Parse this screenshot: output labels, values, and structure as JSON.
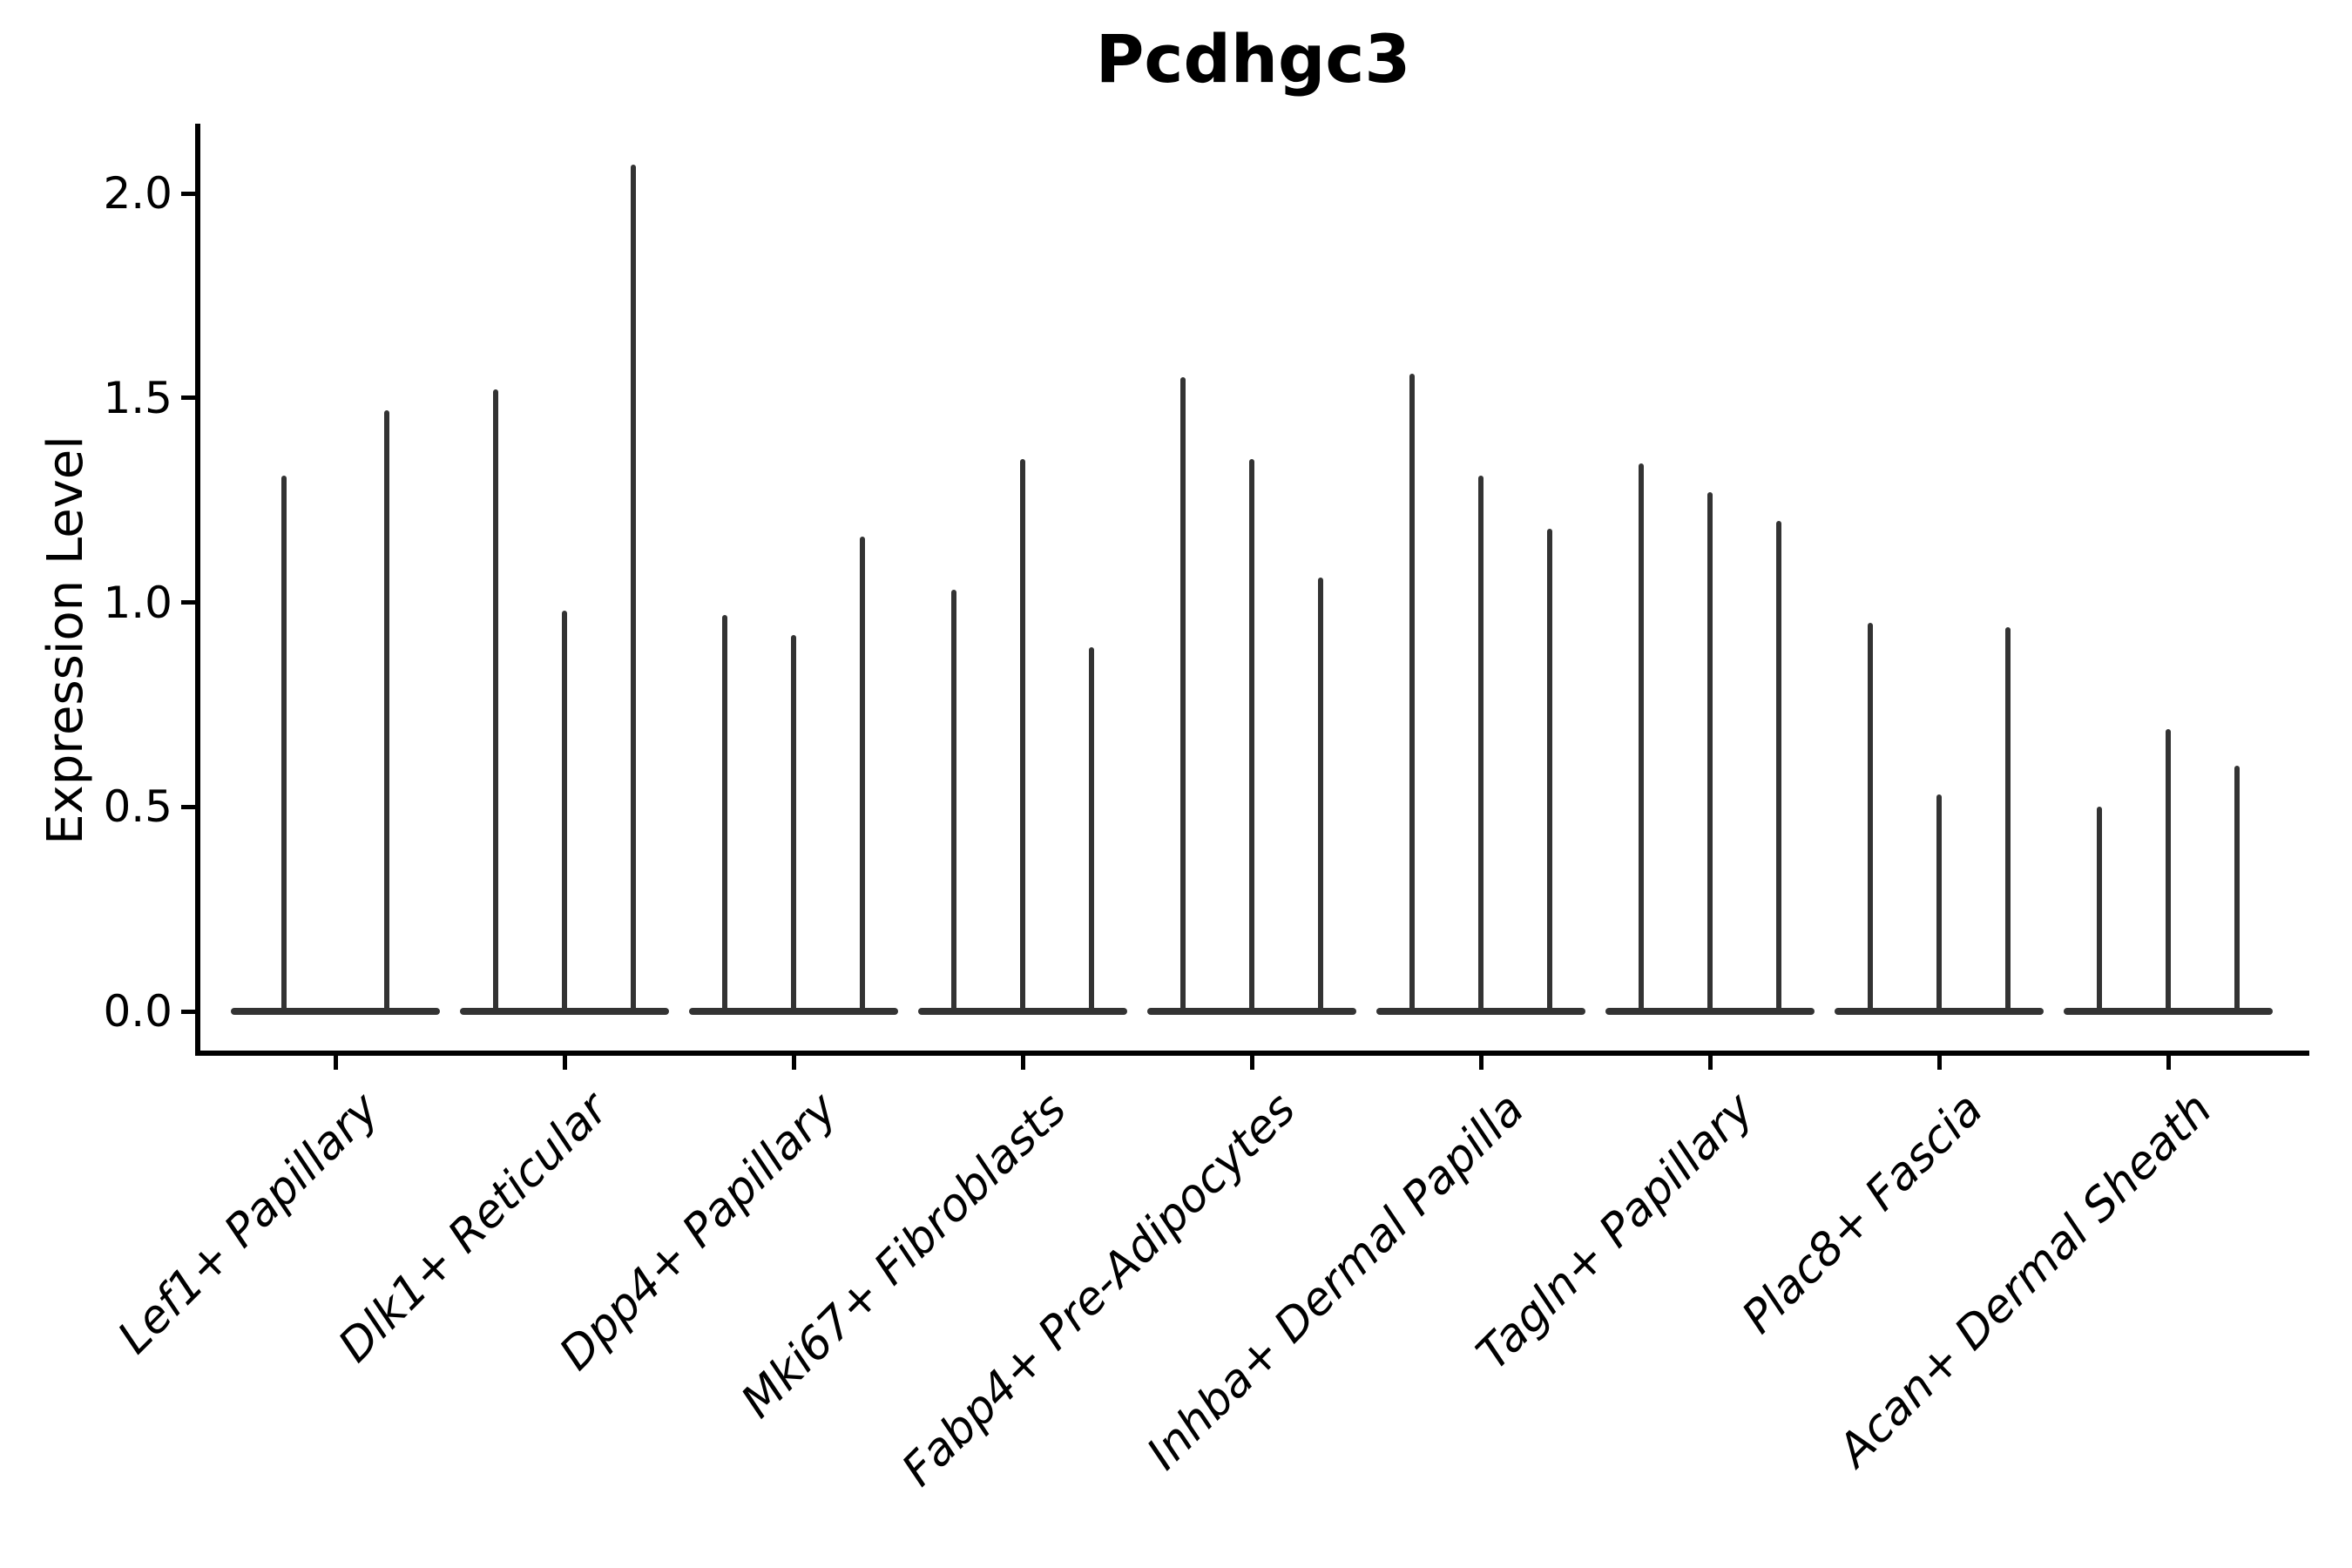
{
  "chart_data": {
    "type": "violin",
    "title": "Pcdhgc3",
    "ylabel": "Expression Level",
    "xlabel": "",
    "ylim": [
      0,
      2.17
    ],
    "grid": false,
    "legend_position": "none",
    "ytick_labels": [
      "0.0",
      "0.5",
      "1.0",
      "1.5",
      "2.0"
    ],
    "ytick_values": [
      0.0,
      0.5,
      1.0,
      1.5,
      2.0
    ],
    "categories": [
      "Lef1+ Papillary",
      "Dlk1+ Reticular",
      "Dpp4+ Papillary",
      "Mki67+ Fibroblasts",
      "Fabp4+ Pre-Adipocytes",
      "Inhba+ Dermal Papilla",
      "Tagln+ Papillary",
      "Plac8+ Fascia",
      "Acan+ Dermal Sheath"
    ],
    "groups": [
      {
        "label": "Lef1+ Papillary",
        "spike_values": [
          1.31,
          1.47
        ]
      },
      {
        "label": "Dlk1+ Reticular",
        "spike_values": [
          1.52,
          0.98,
          2.07
        ]
      },
      {
        "label": "Dpp4+ Papillary",
        "spike_values": [
          0.97,
          0.92,
          1.16
        ]
      },
      {
        "label": "Mki67+ Fibroblasts",
        "spike_values": [
          1.03,
          1.35,
          0.89
        ]
      },
      {
        "label": "Fabp4+ Pre-Adipocytes",
        "spike_values": [
          1.55,
          1.35,
          1.06
        ]
      },
      {
        "label": "Inhba+ Dermal Papilla",
        "spike_values": [
          1.56,
          1.31,
          1.18
        ]
      },
      {
        "label": "Tagln+ Papillary",
        "spike_values": [
          1.34,
          1.27,
          1.2
        ]
      },
      {
        "label": "Plac8+ Fascia",
        "spike_values": [
          0.95,
          0.53,
          0.94
        ]
      },
      {
        "label": "Acan+ Dermal Sheath",
        "spike_values": [
          0.5,
          0.69,
          0.6
        ]
      }
    ],
    "colors": {
      "violin": "#333333",
      "axis": "#000000",
      "text": "#000000",
      "background": "#ffffff"
    }
  }
}
